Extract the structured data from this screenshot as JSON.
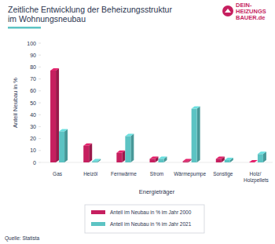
{
  "chart_data": {
    "type": "bar",
    "title": "Zeitliche Entwicklung der Beheizungsstruktur im Wohnungsneubau",
    "x_label": "Energieträger",
    "y_label": "Anteil Neubau in %",
    "categories": [
      "Gas",
      "Heizöl",
      "Fernwärme",
      "Strom",
      "Wärmepumpe",
      "Sonstige",
      "Holz/ Holzpellets"
    ],
    "series": [
      {
        "name": "Anteil im Neubau in % im Jahr 2000",
        "color": "#c61f5f",
        "values": [
          77,
          14,
          8,
          3,
          1,
          3,
          0
        ]
      },
      {
        "name": "Anteil im Neubau in % im Jahr 2021",
        "color": "#5cc3c3",
        "values": [
          26,
          1,
          22,
          3,
          45,
          2,
          7
        ]
      }
    ],
    "ylim": [
      0,
      100
    ],
    "yticks": [
      0,
      10,
      20,
      30,
      40,
      50,
      60,
      70,
      80,
      90,
      100
    ],
    "grid": false,
    "legend": "bottom",
    "annotations": [
      "DEIN-",
      "HEIZUNGS",
      "BAUER.de",
      "Quelle: Statista"
    ]
  }
}
